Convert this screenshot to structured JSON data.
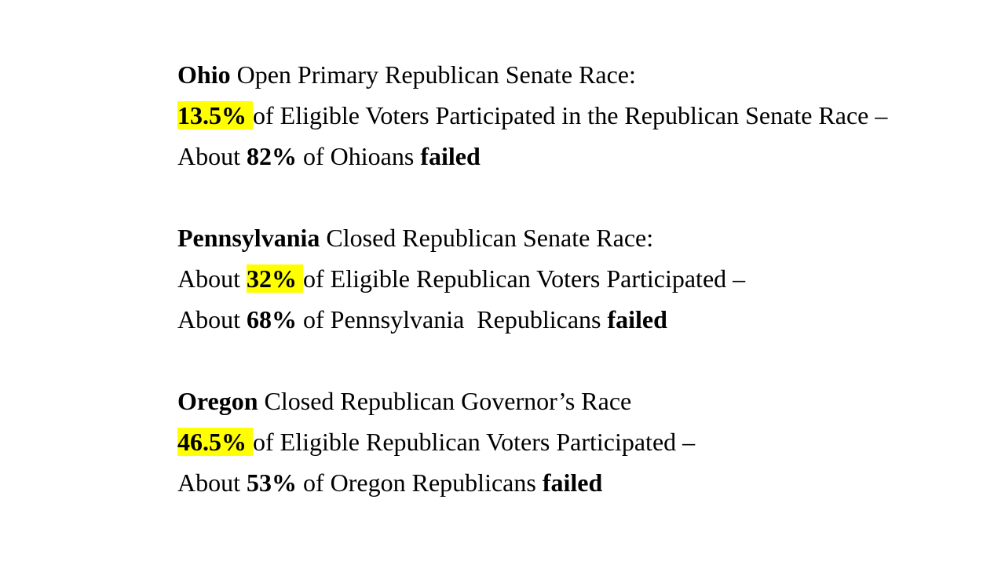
{
  "page": {
    "background_color": "#ffffff",
    "text_color": "#000000",
    "highlight_color": "#ffff00"
  },
  "blocks": [
    {
      "id": "ohio",
      "lines": [
        {
          "segments": [
            {
              "text": "Ohio"
            },
            {
              "text": " Open Primary Republican Senate Race:"
            }
          ]
        },
        {
          "segments": [
            {
              "text": "13.5% "
            },
            {
              "text": "of Eligible Voters Participated in the Republican Senate Race –"
            }
          ]
        },
        {
          "segments": [
            {
              "text": "About "
            },
            {
              "text": "82%"
            },
            {
              "text": " of Ohioans "
            },
            {
              "text": "failed"
            }
          ]
        }
      ]
    },
    {
      "id": "pennsylvania",
      "lines": [
        {
          "segments": [
            {
              "text": "Pennsylvania"
            },
            {
              "text": " Closed Republican Senate Race:"
            }
          ]
        },
        {
          "segments": [
            {
              "text": "About "
            },
            {
              "text": "32% "
            },
            {
              "text": "of Eligible Republican Voters Participated –"
            }
          ]
        },
        {
          "segments": [
            {
              "text": "About "
            },
            {
              "text": "68%"
            },
            {
              "text": " of Pennsylvania  Republicans "
            },
            {
              "text": "failed"
            }
          ]
        }
      ]
    },
    {
      "id": "oregon",
      "lines": [
        {
          "segments": [
            {
              "text": "Oregon"
            },
            {
              "text": " Closed Republican Governor’s Race"
            }
          ]
        },
        {
          "segments": [
            {
              "text": "46.5% "
            },
            {
              "text": "of Eligible Republican Voters Participated –"
            }
          ]
        },
        {
          "segments": [
            {
              "text": "About "
            },
            {
              "text": "53%"
            },
            {
              "text": " of Oregon Republicans "
            },
            {
              "text": "failed"
            }
          ]
        }
      ]
    }
  ]
}
